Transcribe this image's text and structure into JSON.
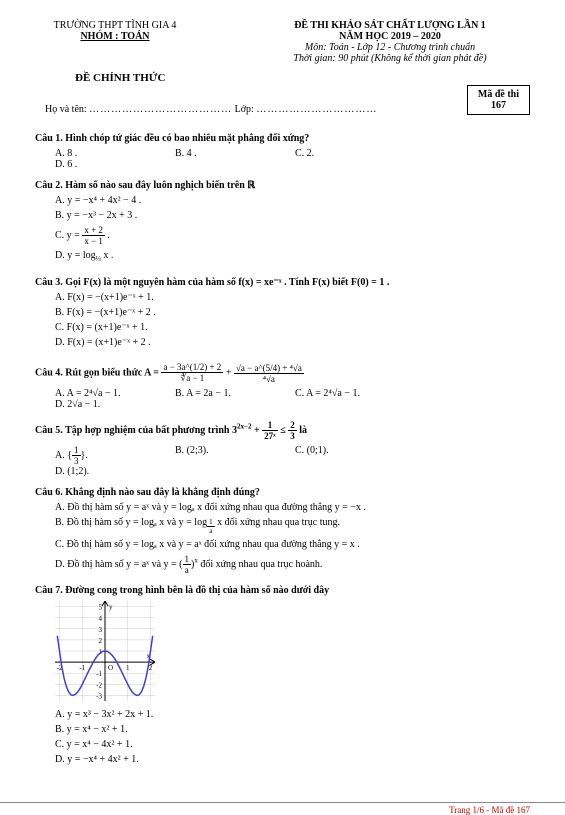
{
  "header": {
    "school": "TRƯỜNG THPT TĨNH GIA 4",
    "group": "NHÓM : TOÁN",
    "exam_title": "ĐỀ THI KHẢO SÁT CHẤT LƯỢNG LẦN 1",
    "year": "NĂM HỌC 2019 – 2020",
    "subject": "Môn: Toán - Lớp 12 - Chương trình chuẩn",
    "time": "Thời gian: 90 phút (Không kể thời gian phát đề)",
    "official": "ĐỀ CHÍNH THỨC",
    "code_label": "Mã đề thi",
    "code_value": "167",
    "name_label": "Họ và tên:",
    "class_label": "Lớp:",
    "dots1": "…………………………………",
    "dots2": "……………………………"
  },
  "q1": {
    "text": "Câu 1. Hình chóp tứ giác đều có bao nhiêu mặt phẳng đối xứng?",
    "a": "A. 8 .",
    "b": "B. 4 .",
    "c": "C. 2.",
    "d": "D. 6 ."
  },
  "q2": {
    "text": "Câu 2. Hàm số nào sau đây luôn nghịch biến trên ℝ",
    "a": "A. y = −x⁴ + 4x² − 4 .",
    "b": "B. y = −x³ − 2x + 3 .",
    "c_prefix": "C. y = ",
    "c_num": "x + 2",
    "c_den": "x − 1",
    "d_prefix": "D. y = log",
    "d_sub": "⅓",
    "d_suffix": " x ."
  },
  "q3": {
    "text": "Câu 3. Gọi F(x) là một nguyên hàm của hàm số f(x) = xe⁻ˣ . Tính F(x) biết F(0) = 1 .",
    "a": "A. F(x) = −(x+1)e⁻ˣ + 1.",
    "b": "B. F(x) = −(x+1)e⁻ˣ + 2 .",
    "c": "C. F(x) = (x+1)e⁻ˣ + 1.",
    "d": "D. F(x) = (x+1)e⁻ˣ + 2 ."
  },
  "q4": {
    "text_prefix": "Câu 4. Rút gọn biểu thức A = ",
    "num1": "a − 3a^(1/2) + 2",
    "den1": "∜a − 1",
    "plus": " + ",
    "num2": "√a − a^(5/4) + ⁴√a",
    "den2": "⁴√a",
    "a": "A. A = 2⁴√a − 1.",
    "b": "B. A = 2a − 1.",
    "c": "C. A = 2⁴√a − 1.",
    "d": "D. 2√a − 1."
  },
  "q5": {
    "text_prefix": "Câu 5. Tập hợp nghiệm của bất phương trình 3",
    "exp": "2x−2",
    "mid": " + ",
    "f1n": "1",
    "f1d": "27ˣ",
    "le": " ≤ ",
    "f2n": "2",
    "f2d": "3",
    "suffix": " là",
    "a_prefix": "A. ",
    "a_n": "1",
    "a_d": "3",
    "a_wrap_l": "{",
    "a_wrap_r": "}.",
    "b": "B. (2;3).",
    "c": "C. (0;1).",
    "d": "D. (1;2)."
  },
  "q6": {
    "text": "Câu 6. Khẳng định nào sau đây là khẳng định đúng?",
    "a": "A. Đồ thị hàm số y = aˣ và y = logₐ x đối xứng nhau qua đường thẳng y = −x .",
    "b_prefix": "B. Đồ thị hàm số y = logₐ x và y = log",
    "b_sub_n": "1",
    "b_sub_d": "a",
    "b_suffix": " x đối xứng nhau qua trục tung.",
    "c": "C. Đồ thị hàm số y = logₐ x và y = aˣ đối xứng nhau qua đường thẳng y = x .",
    "d_prefix": "D. Đồ thị hàm số y = aˣ và y = ",
    "d_n": "1",
    "d_d": "a",
    "d_suffix": " đối xứng nhau qua trục hoành."
  },
  "q7": {
    "text": "Câu 7. Đường cong trong hình bên là đồ thị của hàm số nào dưới đây",
    "a": "A. y = x³ − 3x² + 2x + 1.",
    "b": "B. y = x⁴ − x² + 1.",
    "c": "C. y = x⁴ − 4x² + 1.",
    "d": "D. y = −x⁴ + 4x² + 1."
  },
  "graph": {
    "width": 100,
    "height": 100,
    "x_range": [
      -2.2,
      2.2
    ],
    "y_range": [
      -3.5,
      5.5
    ],
    "grid_color": "#cccccc",
    "curve_color": "#4040d0",
    "axis_color": "#000000",
    "xticks": [
      -2,
      -1,
      1,
      2
    ],
    "yticks": [
      -3,
      -2,
      -1,
      1,
      2,
      3,
      4,
      5
    ],
    "label_x": "x",
    "label_y": "y",
    "curve_points": [
      [
        -2.1,
        2.37
      ],
      [
        -2.0,
        1.0
      ],
      [
        -1.9,
        -0.41
      ],
      [
        -1.8,
        -1.46
      ],
      [
        -1.7,
        -2.2
      ],
      [
        -1.6,
        -2.68
      ],
      [
        -1.5,
        -2.94
      ],
      [
        -1.414,
        -3.0
      ],
      [
        -1.3,
        -2.9
      ],
      [
        -1.2,
        -2.69
      ],
      [
        -1.1,
        -2.38
      ],
      [
        -1.0,
        -2.0
      ],
      [
        -0.9,
        -1.58
      ],
      [
        -0.8,
        -1.15
      ],
      [
        -0.7,
        -0.72
      ],
      [
        -0.6,
        -0.31
      ],
      [
        -0.5,
        0.06
      ],
      [
        -0.4,
        0.39
      ],
      [
        -0.3,
        0.65
      ],
      [
        -0.2,
        0.84
      ],
      [
        -0.1,
        0.96
      ],
      [
        0.0,
        1.0
      ],
      [
        0.1,
        0.96
      ],
      [
        0.2,
        0.84
      ],
      [
        0.3,
        0.65
      ],
      [
        0.4,
        0.39
      ],
      [
        0.5,
        0.06
      ],
      [
        0.6,
        -0.31
      ],
      [
        0.7,
        -0.72
      ],
      [
        0.8,
        -1.15
      ],
      [
        0.9,
        -1.58
      ],
      [
        1.0,
        -2.0
      ],
      [
        1.1,
        -2.38
      ],
      [
        1.2,
        -2.69
      ],
      [
        1.3,
        -2.9
      ],
      [
        1.414,
        -3.0
      ],
      [
        1.5,
        -2.94
      ],
      [
        1.6,
        -2.68
      ],
      [
        1.7,
        -2.2
      ],
      [
        1.8,
        -1.46
      ],
      [
        1.9,
        -0.41
      ],
      [
        2.0,
        1.0
      ],
      [
        2.1,
        2.37
      ]
    ]
  },
  "footer": "Trang 1/6 - Mã đề 167"
}
